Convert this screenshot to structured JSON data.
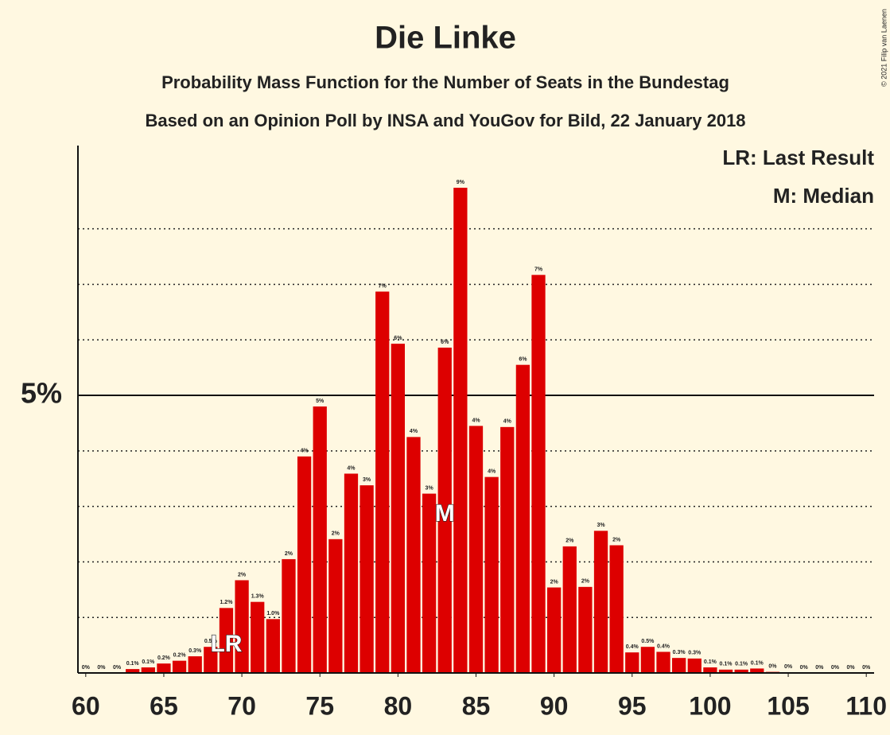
{
  "chart_data": {
    "type": "bar",
    "title": "Die Linke",
    "subtitle": "Probability Mass Function for the Number of Seats in the Bundestag",
    "subtitle2": "Based on an Opinion Poll by INSA and YouGov for Bild, 22 January 2018",
    "copyright": "© 2021 Filip van Laenen",
    "x": [
      60,
      61,
      62,
      63,
      64,
      65,
      66,
      67,
      68,
      69,
      70,
      71,
      72,
      73,
      74,
      75,
      76,
      77,
      78,
      79,
      80,
      81,
      82,
      83,
      84,
      85,
      86,
      87,
      88,
      89,
      90,
      91,
      92,
      93,
      94,
      95,
      96,
      97,
      98,
      99,
      100,
      101,
      102,
      103,
      104,
      105,
      106,
      107,
      108,
      109,
      110
    ],
    "values": [
      0,
      0,
      0,
      0.07,
      0.1,
      0.17,
      0.22,
      0.3,
      0.47,
      1.17,
      1.67,
      1.28,
      0.97,
      2.05,
      3.9,
      4.8,
      2.41,
      3.59,
      3.38,
      6.87,
      5.93,
      4.25,
      3.23,
      5.86,
      8.74,
      4.45,
      3.53,
      4.43,
      5.55,
      7.17,
      1.54,
      2.28,
      1.55,
      2.56,
      2.3,
      0.37,
      0.47,
      0.38,
      0.27,
      0.26,
      0.1,
      0.06,
      0.06,
      0.08,
      0.02,
      0.01,
      0,
      0,
      0,
      0,
      0
    ],
    "value_labels": [
      "0%",
      "0%",
      "0%",
      "0.1%",
      "0.1%",
      "0.2%",
      "0.2%",
      "0.3%",
      "0.5%",
      "1.2%",
      "2%",
      "1.3%",
      "1.0%",
      "2%",
      "4%",
      "5%",
      "2%",
      "4%",
      "3%",
      "7%",
      "6%",
      "4%",
      "3%",
      "6%",
      "9%",
      "4%",
      "4%",
      "4%",
      "6%",
      "7%",
      "2%",
      "2%",
      "2%",
      "3%",
      "2%",
      "0.4%",
      "0.5%",
      "0.4%",
      "0.3%",
      "0.3%",
      "0.1%",
      "0.1%",
      "0.1%",
      "0.1%",
      "0%",
      "0%",
      "0%",
      "0%",
      "0%",
      "0%",
      "0%"
    ],
    "color": "#dd0000",
    "xlim": [
      59.5,
      110.5
    ],
    "xticks": [
      60,
      65,
      70,
      75,
      80,
      85,
      90,
      95,
      100,
      105,
      110
    ],
    "ylim": [
      0,
      9.5
    ],
    "yticks": [
      {
        "value": 5,
        "label": "5%"
      }
    ],
    "ygrid_minor": [
      1,
      2,
      3,
      4,
      6,
      7,
      8
    ],
    "annotations": [
      {
        "text": "LR",
        "x": 69
      },
      {
        "text": "M",
        "x": 83
      }
    ],
    "legend": [
      "LR: Last Result",
      "M: Median"
    ],
    "legend_position": "upper right"
  }
}
